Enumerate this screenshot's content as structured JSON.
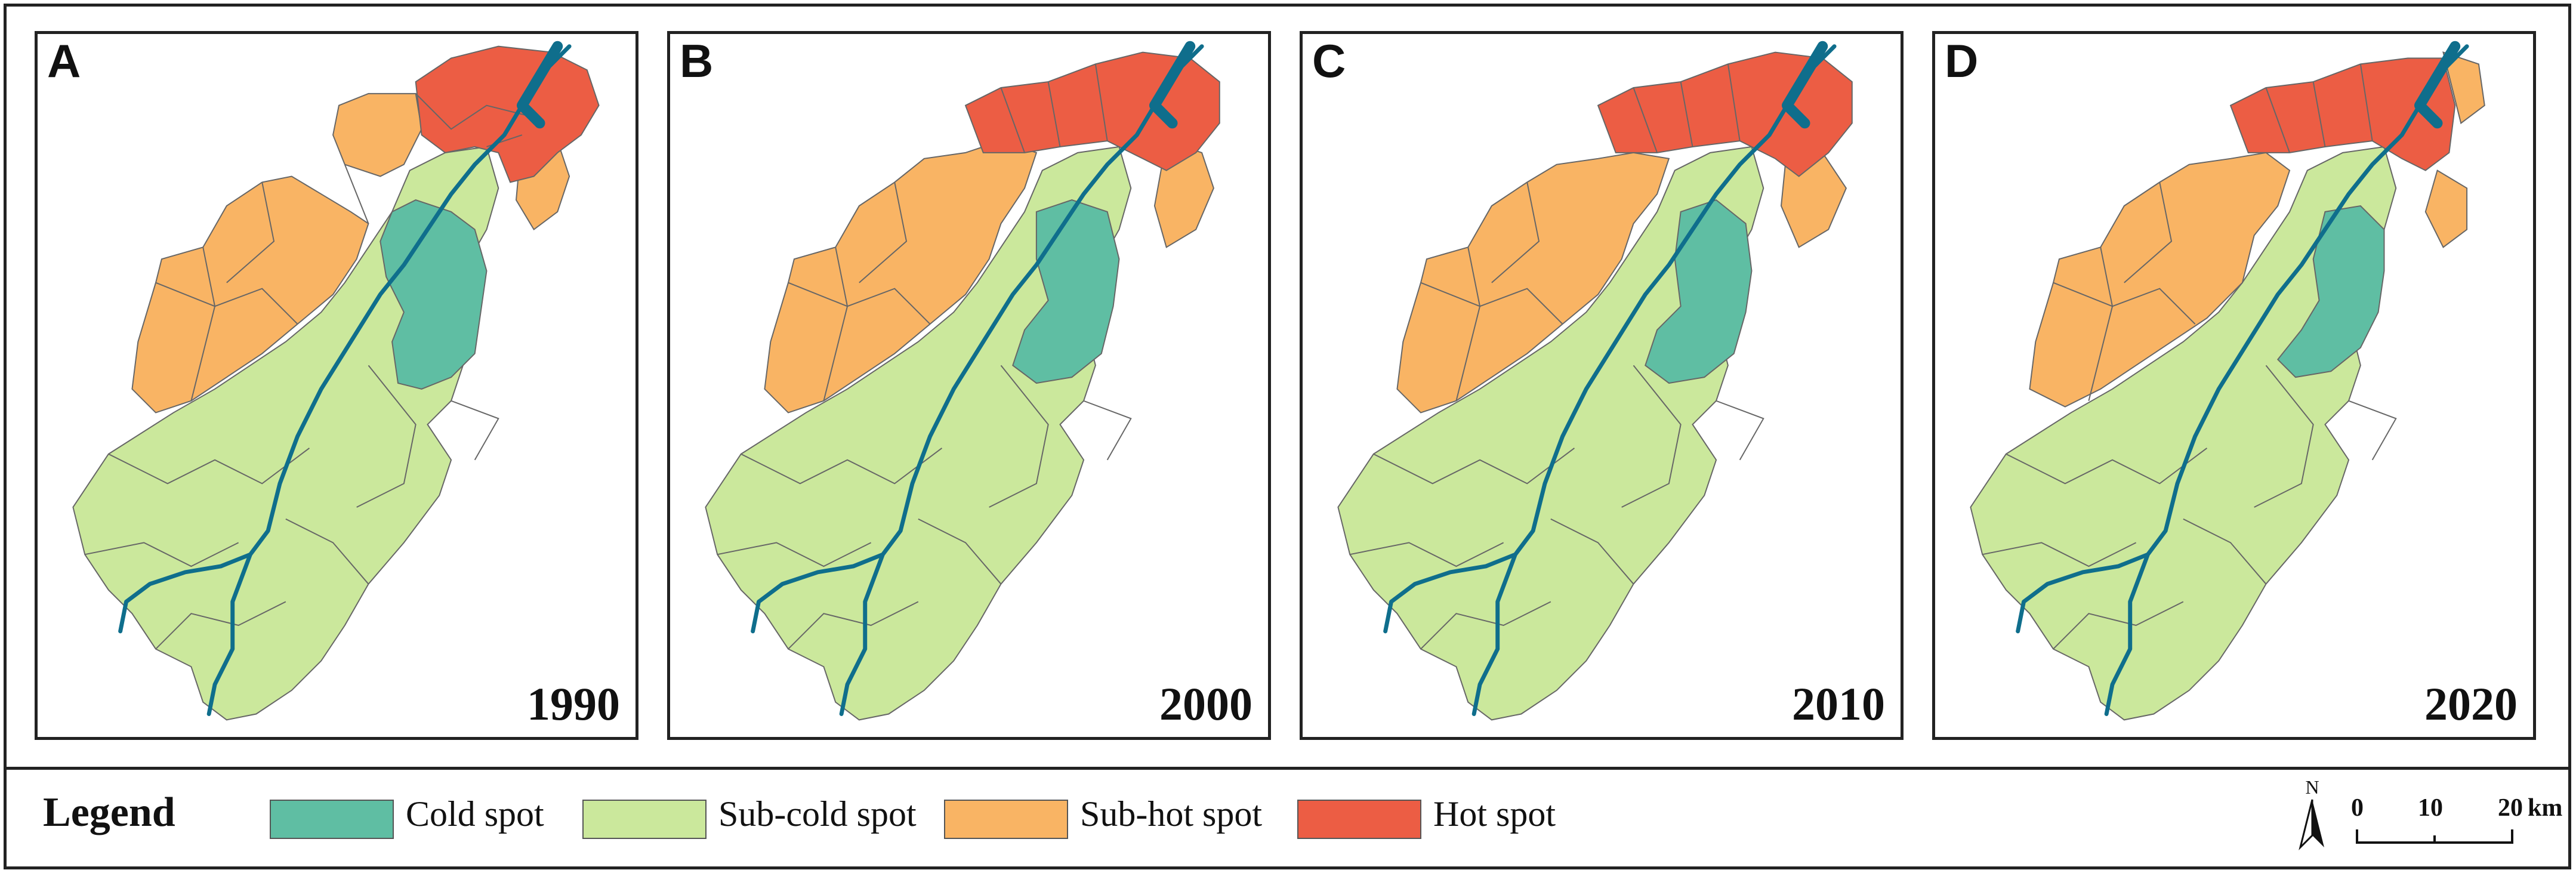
{
  "panels": [
    {
      "letter": "A",
      "year": "1990"
    },
    {
      "letter": "B",
      "year": "2000"
    },
    {
      "letter": "C",
      "year": "2010"
    },
    {
      "letter": "D",
      "year": "2020"
    }
  ],
  "legend": {
    "title": "Legend",
    "items": [
      {
        "label": "Cold spot",
        "color": "#5fbea3"
      },
      {
        "label": "Sub-cold spot",
        "color": "#cbe89c"
      },
      {
        "label": "Sub-hot spot",
        "color": "#f9b464"
      },
      {
        "label": "Hot spot",
        "color": "#ec5d44"
      }
    ]
  },
  "north_arrow": {
    "label": "N"
  },
  "scale_bar": {
    "ticks": [
      "0",
      "10",
      "20"
    ],
    "unit": "km"
  },
  "colors": {
    "river": "#0f6e8c",
    "boundary": "#666666"
  }
}
